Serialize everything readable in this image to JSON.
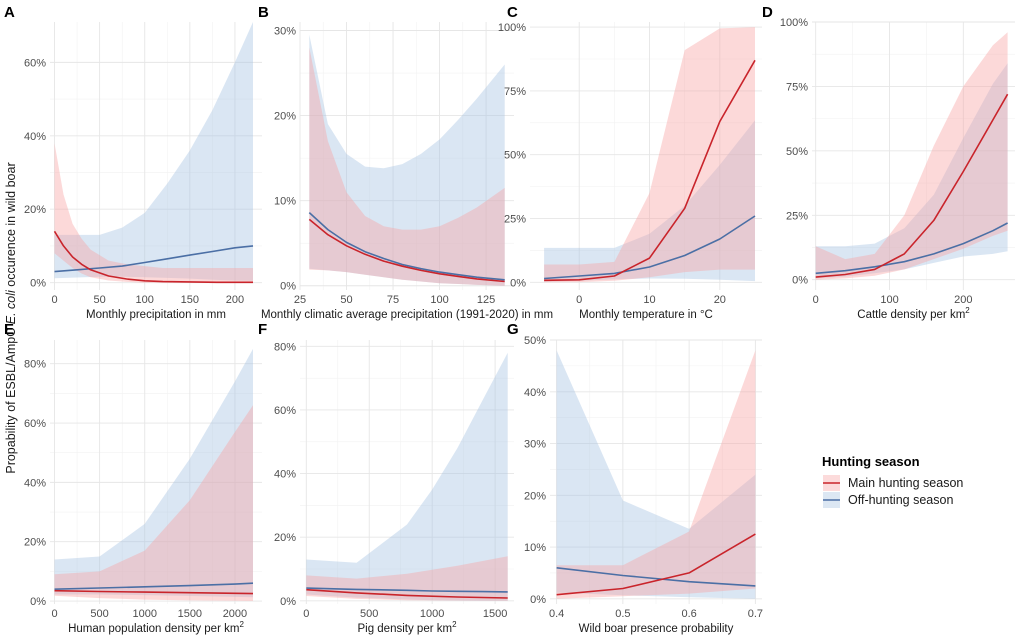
{
  "figure": {
    "ylabel_parts": [
      "Propability of ESBL/AmpC ",
      "E. coli",
      " occurence in wild boar"
    ],
    "legend": {
      "title": "Hunting season",
      "items": [
        {
          "label": "Main hunting season",
          "line": "#c9242b",
          "fill": "#f8a5a5"
        },
        {
          "label": "Off-hunting season",
          "line": "#4b6fa5",
          "fill": "#a8c4e2"
        }
      ]
    }
  },
  "chart_data": [
    {
      "panel": "A",
      "type": "line",
      "xlabel": "Monthly precipitation in mm",
      "xlabel_sup": "",
      "xlim": [
        -5,
        230
      ],
      "ylim": [
        -0.02,
        0.71
      ],
      "xticks": [
        0,
        50,
        100,
        150,
        200
      ],
      "xtick_labels": [
        "0",
        "50",
        "100",
        "150",
        "200"
      ],
      "yticks": [
        0,
        0.2,
        0.4,
        0.6
      ],
      "ytick_labels": [
        "0%",
        "20%",
        "40%",
        "60%"
      ],
      "series": [
        {
          "name": "Main hunting season",
          "x": [
            0,
            10,
            20,
            30,
            40,
            60,
            80,
            100,
            120,
            150,
            180,
            220
          ],
          "y": [
            0.14,
            0.1,
            0.07,
            0.05,
            0.035,
            0.018,
            0.01,
            0.005,
            0.003,
            0.002,
            0.001,
            0.001
          ],
          "lower": [
            0.08,
            0.06,
            0.04,
            0.025,
            0.015,
            0.006,
            0.002,
            0.0,
            0.0,
            0.0,
            0.0,
            0.0
          ],
          "upper": [
            0.38,
            0.24,
            0.16,
            0.12,
            0.09,
            0.06,
            0.05,
            0.045,
            0.04,
            0.04,
            0.04,
            0.04
          ]
        },
        {
          "name": "Off-hunting season",
          "x": [
            0,
            25,
            50,
            75,
            100,
            125,
            150,
            175,
            200,
            220
          ],
          "y": [
            0.03,
            0.035,
            0.04,
            0.045,
            0.055,
            0.065,
            0.075,
            0.085,
            0.095,
            0.1
          ],
          "lower": [
            0.012,
            0.014,
            0.016,
            0.016,
            0.015,
            0.013,
            0.011,
            0.008,
            0.006,
            0.005
          ],
          "upper": [
            0.13,
            0.13,
            0.13,
            0.15,
            0.19,
            0.27,
            0.36,
            0.47,
            0.6,
            0.71
          ]
        }
      ]
    },
    {
      "panel": "B",
      "type": "line",
      "xlabel": "Monthly climatic average precipitation (1991-2020) in mm",
      "xlabel_sup": "",
      "xlim": [
        25,
        140
      ],
      "ylim": [
        -0.005,
        0.31
      ],
      "xticks": [
        25,
        50,
        75,
        100,
        125
      ],
      "xtick_labels": [
        "25",
        "50",
        "75",
        "100",
        "125"
      ],
      "yticks": [
        0,
        0.1,
        0.2,
        0.3
      ],
      "ytick_labels": [
        "0%",
        "10%",
        "20%",
        "30%"
      ],
      "series": [
        {
          "name": "Main hunting season",
          "x": [
            30,
            40,
            50,
            60,
            70,
            80,
            90,
            100,
            110,
            120,
            135
          ],
          "y": [
            0.078,
            0.06,
            0.047,
            0.037,
            0.029,
            0.023,
            0.018,
            0.014,
            0.011,
            0.008,
            0.005
          ],
          "lower": [
            0.019,
            0.018,
            0.016,
            0.013,
            0.01,
            0.007,
            0.005,
            0.003,
            0.002,
            0.001,
            0.0
          ],
          "upper": [
            0.28,
            0.17,
            0.11,
            0.082,
            0.07,
            0.066,
            0.066,
            0.07,
            0.08,
            0.092,
            0.115
          ]
        },
        {
          "name": "Off-hunting season",
          "x": [
            30,
            40,
            50,
            60,
            70,
            80,
            90,
            100,
            110,
            120,
            135
          ],
          "y": [
            0.086,
            0.066,
            0.051,
            0.04,
            0.032,
            0.025,
            0.02,
            0.016,
            0.013,
            0.01,
            0.007
          ],
          "lower": [
            0.02,
            0.018,
            0.016,
            0.013,
            0.01,
            0.007,
            0.005,
            0.003,
            0.002,
            0.001,
            0.0
          ],
          "upper": [
            0.295,
            0.19,
            0.155,
            0.14,
            0.138,
            0.143,
            0.155,
            0.172,
            0.195,
            0.22,
            0.26
          ]
        }
      ]
    },
    {
      "panel": "C",
      "type": "line",
      "xlabel": "Monthly temperature in °C",
      "xlabel_sup": "",
      "xlim": [
        -7,
        26
      ],
      "ylim": [
        -0.03,
        1.02
      ],
      "xticks": [
        0,
        10,
        20
      ],
      "xtick_labels": [
        "0",
        "10",
        "20"
      ],
      "yticks": [
        0,
        0.25,
        0.5,
        0.75,
        1.0
      ],
      "ytick_labels": [
        "0%",
        "25%",
        "50%",
        "75%",
        "100%"
      ],
      "series": [
        {
          "name": "Main hunting season",
          "x": [
            -5,
            0,
            5,
            10,
            15,
            20,
            25
          ],
          "y": [
            0.008,
            0.01,
            0.025,
            0.095,
            0.29,
            0.63,
            0.87
          ],
          "lower": [
            0.0,
            0.001,
            0.006,
            0.02,
            0.04,
            0.05,
            0.05
          ],
          "upper": [
            0.07,
            0.07,
            0.08,
            0.35,
            0.91,
            0.995,
            1.0
          ]
        },
        {
          "name": "Off-hunting season",
          "x": [
            -5,
            0,
            5,
            10,
            15,
            20,
            25
          ],
          "y": [
            0.015,
            0.025,
            0.035,
            0.06,
            0.105,
            0.17,
            0.26
          ],
          "lower": [
            0.002,
            0.006,
            0.012,
            0.015,
            0.014,
            0.01,
            0.005
          ],
          "upper": [
            0.135,
            0.135,
            0.135,
            0.19,
            0.3,
            0.46,
            0.635
          ]
        }
      ]
    },
    {
      "panel": "D",
      "type": "line",
      "xlabel": "Cattle density per km",
      "xlabel_sup": "2",
      "xlim": [
        -5,
        270
      ],
      "ylim": [
        -0.04,
        1.0
      ],
      "xticks": [
        0,
        100,
        200
      ],
      "xtick_labels": [
        "0",
        "100",
        "200"
      ],
      "yticks": [
        0,
        0.25,
        0.5,
        0.75,
        1.0
      ],
      "ytick_labels": [
        "0%",
        "25%",
        "50%",
        "75%",
        "100%"
      ],
      "series": [
        {
          "name": "Main hunting season",
          "x": [
            0,
            40,
            80,
            120,
            160,
            200,
            240,
            260
          ],
          "y": [
            0.01,
            0.02,
            0.04,
            0.1,
            0.23,
            0.42,
            0.62,
            0.72
          ],
          "lower": [
            0.0,
            0.005,
            0.015,
            0.04,
            0.08,
            0.12,
            0.17,
            0.19
          ],
          "upper": [
            0.13,
            0.08,
            0.1,
            0.25,
            0.52,
            0.75,
            0.91,
            0.96
          ]
        },
        {
          "name": "Off-hunting season",
          "x": [
            0,
            40,
            80,
            120,
            160,
            200,
            240,
            260
          ],
          "y": [
            0.025,
            0.035,
            0.05,
            0.07,
            0.1,
            0.14,
            0.19,
            0.22
          ],
          "lower": [
            0.005,
            0.012,
            0.025,
            0.04,
            0.065,
            0.09,
            0.1,
            0.11
          ],
          "upper": [
            0.13,
            0.13,
            0.14,
            0.2,
            0.33,
            0.55,
            0.76,
            0.84
          ]
        }
      ]
    },
    {
      "panel": "E",
      "type": "line",
      "xlabel": "Human population density per km",
      "xlabel_sup": "2",
      "xlim": [
        -50,
        2300
      ],
      "ylim": [
        -0.01,
        0.88
      ],
      "xticks": [
        0,
        500,
        1000,
        1500,
        2000
      ],
      "xtick_labels": [
        "0",
        "500",
        "1000",
        "1500",
        "2000"
      ],
      "yticks": [
        0,
        0.2,
        0.4,
        0.6,
        0.8
      ],
      "ytick_labels": [
        "0%",
        "20%",
        "40%",
        "60%",
        "80%"
      ],
      "series": [
        {
          "name": "Main hunting season",
          "x": [
            0,
            500,
            1000,
            1500,
            2000,
            2200
          ],
          "y": [
            0.035,
            0.032,
            0.03,
            0.028,
            0.026,
            0.025
          ],
          "lower": [
            0.018,
            0.01,
            0.005,
            0.002,
            0.001,
            0.0
          ],
          "upper": [
            0.09,
            0.1,
            0.17,
            0.34,
            0.57,
            0.66
          ]
        },
        {
          "name": "Off-hunting season",
          "x": [
            0,
            500,
            1000,
            1500,
            2000,
            2200
          ],
          "y": [
            0.04,
            0.044,
            0.048,
            0.052,
            0.057,
            0.06
          ],
          "lower": [
            0.022,
            0.022,
            0.02,
            0.017,
            0.014,
            0.013
          ],
          "upper": [
            0.14,
            0.15,
            0.26,
            0.48,
            0.74,
            0.85
          ]
        }
      ]
    },
    {
      "panel": "F",
      "type": "line",
      "xlabel": "Pig density per km",
      "xlabel_sup": "2",
      "xlim": [
        -50,
        1650
      ],
      "ylim": [
        -0.01,
        0.82
      ],
      "xticks": [
        0,
        500,
        1000,
        1500
      ],
      "xtick_labels": [
        "0",
        "500",
        "1000",
        "1500"
      ],
      "yticks": [
        0,
        0.2,
        0.4,
        0.6,
        0.8
      ],
      "ytick_labels": [
        "0%",
        "20%",
        "40%",
        "60%",
        "80%"
      ],
      "series": [
        {
          "name": "Main hunting season",
          "x": [
            0,
            400,
            800,
            1200,
            1600
          ],
          "y": [
            0.035,
            0.025,
            0.017,
            0.012,
            0.009
          ],
          "lower": [
            0.015,
            0.006,
            0.002,
            0.001,
            0.0
          ],
          "upper": [
            0.08,
            0.07,
            0.085,
            0.11,
            0.14
          ]
        },
        {
          "name": "Off-hunting season",
          "x": [
            0,
            400,
            800,
            1000,
            1200,
            1400,
            1600
          ],
          "y": [
            0.04,
            0.036,
            0.033,
            0.031,
            0.03,
            0.029,
            0.028
          ],
          "lower": [
            0.02,
            0.01,
            0.004,
            0.002,
            0.001,
            0.0,
            0.0
          ],
          "upper": [
            0.13,
            0.12,
            0.24,
            0.35,
            0.48,
            0.63,
            0.78
          ]
        }
      ]
    },
    {
      "panel": "G",
      "type": "line",
      "xlabel": "Wild boar presence probability",
      "xlabel_sup": "",
      "xlim": [
        0.39,
        0.71
      ],
      "ylim": [
        -0.01,
        0.5
      ],
      "xticks": [
        0.4,
        0.5,
        0.6,
        0.7
      ],
      "xtick_labels": [
        "0.4",
        "0.5",
        "0.6",
        "0.7"
      ],
      "yticks": [
        0,
        0.1,
        0.2,
        0.3,
        0.4,
        0.5
      ],
      "ytick_labels": [
        "0%",
        "10%",
        "20%",
        "30%",
        "40%",
        "50%"
      ],
      "series": [
        {
          "name": "Main hunting season",
          "x": [
            0.4,
            0.5,
            0.6,
            0.7
          ],
          "y": [
            0.008,
            0.02,
            0.05,
            0.125
          ],
          "lower": [
            0.0,
            0.005,
            0.01,
            0.02
          ],
          "upper": [
            0.065,
            0.065,
            0.13,
            0.48
          ]
        },
        {
          "name": "Off-hunting season",
          "x": [
            0.4,
            0.5,
            0.6,
            0.7
          ],
          "y": [
            0.06,
            0.045,
            0.033,
            0.025
          ],
          "lower": [
            0.012,
            0.007,
            0.003,
            0.0
          ],
          "upper": [
            0.48,
            0.19,
            0.135,
            0.24
          ]
        }
      ]
    }
  ]
}
